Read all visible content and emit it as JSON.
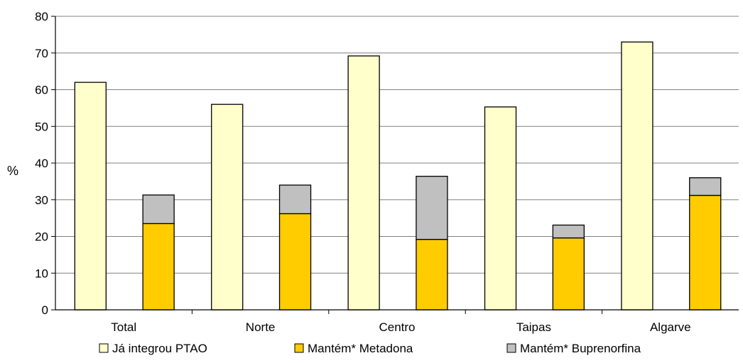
{
  "chart_data": {
    "type": "bar",
    "ylabel": "%",
    "ylim": [
      0,
      80
    ],
    "yticks": [
      0,
      10,
      20,
      30,
      40,
      50,
      60,
      70,
      80
    ],
    "grid": true,
    "legend_position": "bottom",
    "categories": [
      "Total",
      "Norte",
      "Centro",
      "Taipas",
      "Algarve"
    ],
    "series": [
      {
        "name": "Já integrou PTAO",
        "values": [
          62,
          56,
          69.2,
          55.3,
          73
        ],
        "color": "#FFFFCC",
        "stack": "a"
      },
      {
        "name": "Mantém* Metadona",
        "values": [
          23.5,
          26.2,
          19.2,
          19.6,
          31.2
        ],
        "color": "#FFCC00",
        "stack": "b"
      },
      {
        "name": "Mantém* Buprenorfina",
        "values": [
          7.8,
          7.8,
          17.2,
          3.5,
          4.8
        ],
        "color": "#C0C0C0",
        "stack": "b"
      }
    ]
  }
}
